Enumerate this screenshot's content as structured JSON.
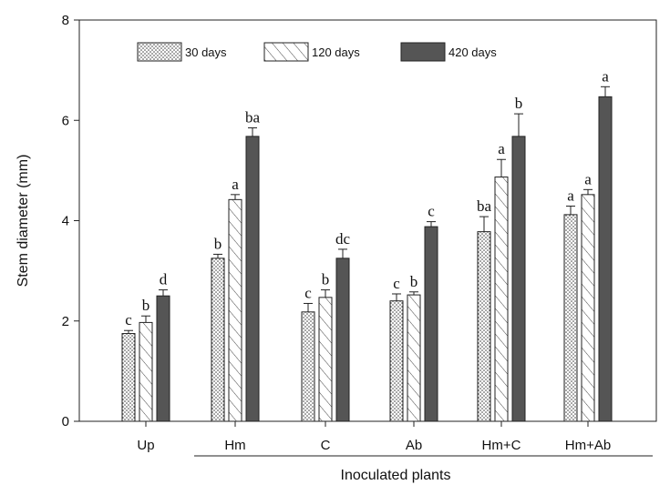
{
  "chart_data": {
    "type": "bar",
    "title": "",
    "xlabel": "",
    "ylabel": "Stem diameter (mm)",
    "ylim": [
      0,
      8
    ],
    "yticks": [
      "0",
      "2",
      "4",
      "6",
      "8"
    ],
    "categories": [
      "Up",
      "Hm",
      "C",
      "Ab",
      "Hm+C",
      "Hm+Ab"
    ],
    "group_label": "Inoculated plants",
    "legend_position": "top",
    "grid": false,
    "series": [
      {
        "name": "30 days",
        "pattern": "dots",
        "values": [
          1.75,
          3.25,
          2.18,
          2.4,
          3.78,
          4.12
        ],
        "errors": [
          0.06,
          0.08,
          0.17,
          0.14,
          0.3,
          0.17
        ],
        "letters": [
          "c",
          "b",
          "c",
          "c",
          "ba",
          "a"
        ]
      },
      {
        "name": "120 days",
        "pattern": "hatch",
        "values": [
          1.97,
          4.42,
          2.47,
          2.52,
          4.87,
          4.52
        ],
        "errors": [
          0.13,
          0.1,
          0.15,
          0.06,
          0.35,
          0.1
        ],
        "letters": [
          "b",
          "a",
          "b",
          "b",
          "a",
          "a"
        ]
      },
      {
        "name": "420 days",
        "pattern": "solid",
        "color": "#555555",
        "values": [
          2.5,
          5.68,
          3.25,
          3.88,
          5.68,
          6.47
        ],
        "errors": [
          0.12,
          0.17,
          0.18,
          0.1,
          0.45,
          0.2
        ],
        "letters": [
          "d",
          "ba",
          "dc",
          "c",
          "b",
          "a"
        ]
      }
    ]
  }
}
